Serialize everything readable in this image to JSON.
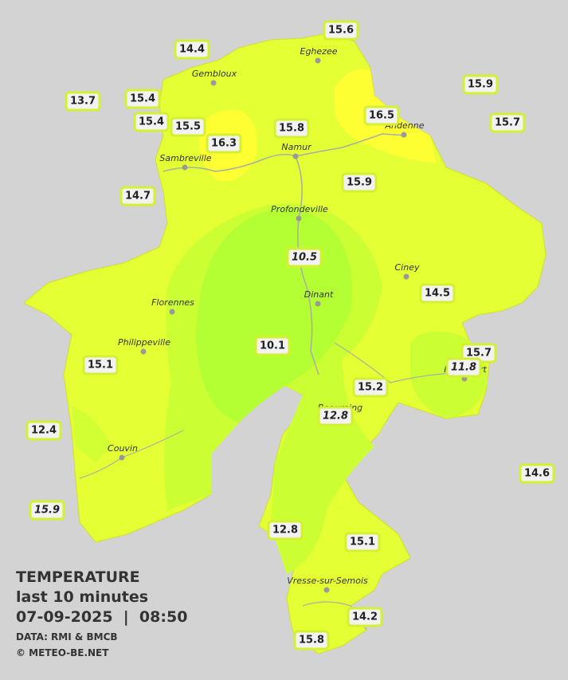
{
  "map": {
    "title": "TEMPERATURE",
    "subtitle": "last 10 minutes",
    "datetime": "07-09-2025  |  08:50",
    "source": "DATA: RMI & BMCB",
    "credit": "© METEO-BE.NET",
    "cities": [
      "Eghezee",
      "Gembloux",
      "Namur",
      "Andenne",
      "Sambreville",
      "Profondeville",
      "Ciney",
      "Dinant",
      "Florennes",
      "Philippeville",
      "Rochefort",
      "Beauraing",
      "Couvin",
      "Vresse-sur-Semois"
    ],
    "stations": [
      {
        "value": 15.6
      },
      {
        "value": 14.4
      },
      {
        "value": 13.7
      },
      {
        "value": 15.4
      },
      {
        "value": 15.4
      },
      {
        "value": 15.5
      },
      {
        "value": 16.3
      },
      {
        "value": 15.8
      },
      {
        "value": 16.5
      },
      {
        "value": 15.9
      },
      {
        "value": 15.7
      },
      {
        "value": 14.7
      },
      {
        "value": 15.9
      },
      {
        "value": 10.5,
        "style": "italic"
      },
      {
        "value": 14.5
      },
      {
        "value": 10.1
      },
      {
        "value": 15.1
      },
      {
        "value": 15.7
      },
      {
        "value": 11.8,
        "style": "italic"
      },
      {
        "value": 15.2
      },
      {
        "value": 12.8,
        "style": "italic"
      },
      {
        "value": 12.4
      },
      {
        "value": 14.6
      },
      {
        "value": 15.9,
        "style": "italic"
      },
      {
        "value": 12.8
      },
      {
        "value": 15.1
      },
      {
        "value": 14.2
      },
      {
        "value": 15.8
      }
    ]
  }
}
